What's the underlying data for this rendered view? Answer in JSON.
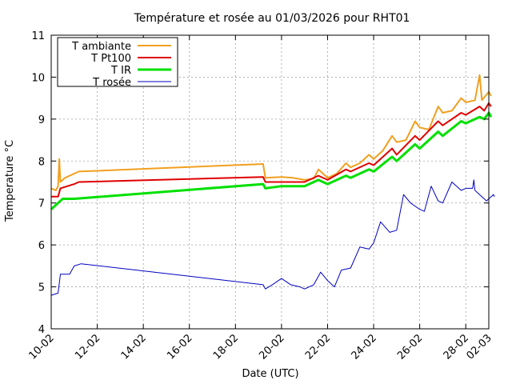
{
  "chart_data": {
    "type": "line",
    "title": "Température et rosée au 01/03/2026 pour RHT01",
    "xlabel": "Date (UTC)",
    "ylabel": "Temperature °C",
    "ylim": [
      4,
      11
    ],
    "yticks": [
      "4",
      "5",
      "6",
      "7",
      "8",
      "9",
      "10",
      "11"
    ],
    "xlim": [
      0,
      19
    ],
    "xticks": [
      {
        "v": 0,
        "label": "10-02"
      },
      {
        "v": 2,
        "label": "12-02"
      },
      {
        "v": 4,
        "label": "14-02"
      },
      {
        "v": 6,
        "label": "16-02"
      },
      {
        "v": 8,
        "label": "18-02"
      },
      {
        "v": 10,
        "label": "20-02"
      },
      {
        "v": 12,
        "label": "22-02"
      },
      {
        "v": 14,
        "label": "24-02"
      },
      {
        "v": 16,
        "label": "26-02"
      },
      {
        "v": 18,
        "label": "28-02"
      },
      {
        "v": 19,
        "label": "02-03"
      }
    ],
    "grid": true,
    "legend_position": "top-left",
    "series": [
      {
        "name": "T ambiante",
        "color": "#f0a020",
        "points": [
          [
            0,
            7.35
          ],
          [
            0.2,
            7.3
          ],
          [
            0.3,
            7.4
          ],
          [
            0.35,
            8.05
          ],
          [
            0.4,
            7.5
          ],
          [
            0.6,
            7.6
          ],
          [
            1,
            7.7
          ],
          [
            1.2,
            7.75
          ],
          [
            9.2,
            7.93
          ],
          [
            9.3,
            7.6
          ],
          [
            10,
            7.62
          ],
          [
            10.5,
            7.6
          ],
          [
            11,
            7.55
          ],
          [
            11.4,
            7.58
          ],
          [
            11.6,
            7.8
          ],
          [
            12,
            7.6
          ],
          [
            12.4,
            7.7
          ],
          [
            12.8,
            7.95
          ],
          [
            13,
            7.85
          ],
          [
            13.4,
            7.95
          ],
          [
            13.8,
            8.15
          ],
          [
            14,
            8.05
          ],
          [
            14.4,
            8.25
          ],
          [
            14.8,
            8.6
          ],
          [
            15,
            8.45
          ],
          [
            15.4,
            8.5
          ],
          [
            15.8,
            8.95
          ],
          [
            16,
            8.8
          ],
          [
            16.4,
            8.75
          ],
          [
            16.8,
            9.3
          ],
          [
            17,
            9.15
          ],
          [
            17.4,
            9.2
          ],
          [
            17.8,
            9.5
          ],
          [
            18,
            9.4
          ],
          [
            18.4,
            9.45
          ],
          [
            18.6,
            10.05
          ],
          [
            18.7,
            9.45
          ],
          [
            19,
            9.65
          ],
          [
            19.1,
            9.55
          ]
        ]
      },
      {
        "name": "T Pt100",
        "color": "#e00000",
        "points": [
          [
            0,
            7.15
          ],
          [
            0.3,
            7.15
          ],
          [
            0.4,
            7.35
          ],
          [
            1,
            7.45
          ],
          [
            1.2,
            7.5
          ],
          [
            9.2,
            7.62
          ],
          [
            9.3,
            7.5
          ],
          [
            10,
            7.5
          ],
          [
            11,
            7.5
          ],
          [
            11.6,
            7.65
          ],
          [
            12,
            7.55
          ],
          [
            12.8,
            7.8
          ],
          [
            13,
            7.75
          ],
          [
            13.8,
            7.95
          ],
          [
            14,
            7.9
          ],
          [
            14.8,
            8.3
          ],
          [
            15,
            8.15
          ],
          [
            15.8,
            8.6
          ],
          [
            16,
            8.5
          ],
          [
            16.8,
            8.95
          ],
          [
            17,
            8.85
          ],
          [
            17.8,
            9.15
          ],
          [
            18,
            9.1
          ],
          [
            18.6,
            9.3
          ],
          [
            18.8,
            9.2
          ],
          [
            19,
            9.38
          ],
          [
            19.1,
            9.3
          ]
        ]
      },
      {
        "name": "T IR",
        "color": "#00e000",
        "points": [
          [
            0,
            6.85
          ],
          [
            0.3,
            7.0
          ],
          [
            0.5,
            7.1
          ],
          [
            1,
            7.1
          ],
          [
            9.2,
            7.45
          ],
          [
            9.3,
            7.35
          ],
          [
            10,
            7.4
          ],
          [
            11,
            7.4
          ],
          [
            11.6,
            7.55
          ],
          [
            12,
            7.45
          ],
          [
            12.8,
            7.65
          ],
          [
            13,
            7.6
          ],
          [
            13.8,
            7.8
          ],
          [
            14,
            7.75
          ],
          [
            14.8,
            8.1
          ],
          [
            15,
            8.0
          ],
          [
            15.8,
            8.4
          ],
          [
            16,
            8.3
          ],
          [
            16.8,
            8.7
          ],
          [
            17,
            8.6
          ],
          [
            17.8,
            8.95
          ],
          [
            18,
            8.9
          ],
          [
            18.6,
            9.05
          ],
          [
            18.8,
            9.0
          ],
          [
            19,
            9.15
          ],
          [
            19.1,
            9.05
          ]
        ]
      },
      {
        "name": "T rosée",
        "color": "#0000c0",
        "points": [
          [
            0,
            4.8
          ],
          [
            0.3,
            4.85
          ],
          [
            0.4,
            5.3
          ],
          [
            0.8,
            5.3
          ],
          [
            1.0,
            5.5
          ],
          [
            1.3,
            5.55
          ],
          [
            9.2,
            5.05
          ],
          [
            9.3,
            4.95
          ],
          [
            9.6,
            5.05
          ],
          [
            10,
            5.2
          ],
          [
            10.4,
            5.05
          ],
          [
            10.8,
            5.0
          ],
          [
            11,
            4.95
          ],
          [
            11.4,
            5.05
          ],
          [
            11.7,
            5.35
          ],
          [
            12,
            5.15
          ],
          [
            12.3,
            5.0
          ],
          [
            12.6,
            5.4
          ],
          [
            13,
            5.45
          ],
          [
            13.4,
            5.95
          ],
          [
            13.8,
            5.9
          ],
          [
            14,
            6.05
          ],
          [
            14.3,
            6.55
          ],
          [
            14.7,
            6.3
          ],
          [
            15,
            6.35
          ],
          [
            15.3,
            7.2
          ],
          [
            15.6,
            7.0
          ],
          [
            16,
            6.85
          ],
          [
            16.2,
            6.8
          ],
          [
            16.5,
            7.4
          ],
          [
            16.8,
            7.05
          ],
          [
            17,
            7.0
          ],
          [
            17.4,
            7.5
          ],
          [
            17.8,
            7.3
          ],
          [
            18,
            7.35
          ],
          [
            18.3,
            7.35
          ],
          [
            18.35,
            7.55
          ],
          [
            18.4,
            7.3
          ],
          [
            18.9,
            7.05
          ],
          [
            19,
            7.1
          ],
          [
            19.2,
            7.2
          ],
          [
            19.25,
            7.15
          ]
        ]
      }
    ]
  }
}
